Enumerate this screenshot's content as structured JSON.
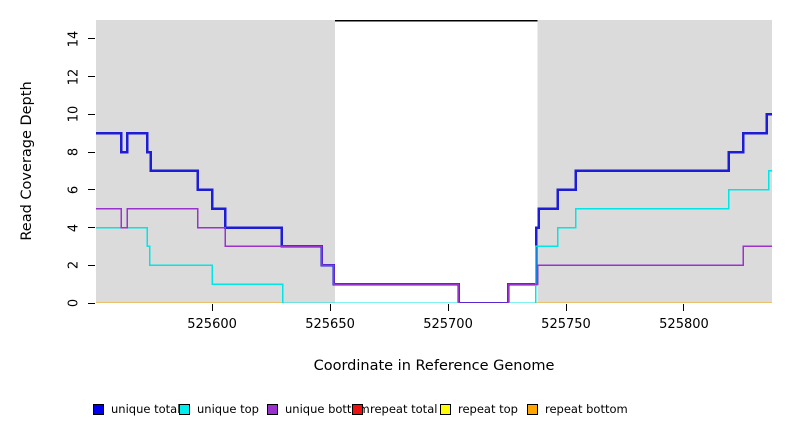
{
  "chart_data": {
    "type": "line",
    "subtype": "step-coverage-plot",
    "title": "",
    "xlabel": "Coordinate in Reference Genome",
    "ylabel": "Read Coverage Depth",
    "xlim": [
      525550.8,
      525837.3
    ],
    "ylim": [
      0,
      15
    ],
    "x_ticks": [
      525600,
      525650,
      525700,
      525750,
      525800
    ],
    "y_ticks": [
      0,
      2,
      4,
      6,
      8,
      10,
      12,
      14
    ],
    "grid": false,
    "plot_background": "#ffffff",
    "shaded_band_color": "#dbdbdb",
    "shaded_bands": [
      {
        "x0": 525550.8,
        "x1": 525652.1
      },
      {
        "x0": 525738.0,
        "x1": 525837.3
      }
    ],
    "gap_top_marker": {
      "x0": 525652.1,
      "x1": 525738.0,
      "y": 15,
      "color": "#000000"
    },
    "series": [
      {
        "name": "repeat total",
        "color": "#e01111",
        "width": 1.5,
        "steps": [
          [
            525550.8,
            0
          ]
        ]
      },
      {
        "name": "repeat top",
        "color": "#ffff00",
        "width": 1.5,
        "steps": [
          [
            525550.8,
            0
          ]
        ]
      },
      {
        "name": "repeat bottom",
        "color": "#ffa500",
        "width": 1.5,
        "steps": [
          [
            525550.8,
            0
          ]
        ]
      },
      {
        "name": "unique total",
        "color": "#1d1dd5",
        "width": 2.5,
        "steps": [
          [
            525550.8,
            9
          ],
          [
            525561.5,
            8
          ],
          [
            525564,
            9
          ],
          [
            525572.5,
            8
          ],
          [
            525574,
            7
          ],
          [
            525594,
            6
          ],
          [
            525600,
            5
          ],
          [
            525605.5,
            4
          ],
          [
            525629.5,
            3
          ],
          [
            525646.5,
            2
          ],
          [
            525651.5,
            1
          ],
          [
            525704.5,
            0
          ],
          [
            525725.5,
            1
          ],
          [
            525737.4,
            4
          ],
          [
            525738.5,
            5
          ],
          [
            525746.5,
            6
          ],
          [
            525754,
            7
          ],
          [
            525819,
            8
          ],
          [
            525825,
            9
          ],
          [
            525835,
            10
          ]
        ]
      },
      {
        "name": "unique top",
        "color": "#00e6e6",
        "width": 1.5,
        "steps": [
          [
            525550.8,
            4
          ],
          [
            525572.5,
            3
          ],
          [
            525573.5,
            2
          ],
          [
            525600,
            1
          ],
          [
            525630,
            0
          ],
          [
            525737.2,
            3
          ],
          [
            525746.5,
            4
          ],
          [
            525754,
            5
          ],
          [
            525819,
            6
          ],
          [
            525836,
            7
          ]
        ]
      },
      {
        "name": "unique bottom",
        "color": "#9933cc",
        "width": 1.5,
        "steps": [
          [
            525550.8,
            5
          ],
          [
            525561.5,
            4
          ],
          [
            525564,
            5
          ],
          [
            525594,
            4
          ],
          [
            525605.5,
            3
          ],
          [
            525646.5,
            2
          ],
          [
            525651.5,
            1
          ],
          [
            525704.5,
            0
          ],
          [
            525725.5,
            1
          ],
          [
            525738,
            2
          ],
          [
            525825,
            3
          ]
        ]
      }
    ],
    "legend": {
      "position": "bottom",
      "entries": [
        {
          "label": "unique total",
          "color": "#0000ee"
        },
        {
          "label": "unique top",
          "color": "#00eeee"
        },
        {
          "label": "unique bottom",
          "color": "#9932cc"
        },
        {
          "label": "repeat total",
          "color": "#ee1111"
        },
        {
          "label": "repeat top",
          "color": "#ffff00"
        },
        {
          "label": "repeat bottom",
          "color": "#ffa500"
        }
      ]
    }
  }
}
